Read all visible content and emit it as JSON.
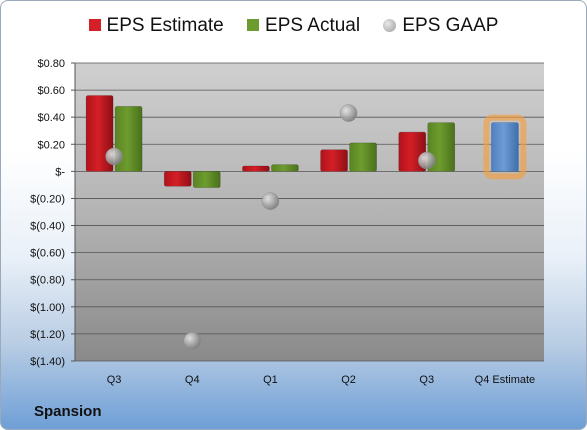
{
  "company": "Spansion",
  "colors": {
    "estimate": "#d41f26",
    "actual": "#6d9c2e",
    "gaap": "#9c9c9c",
    "next_estimate": "#6e9bd4",
    "glow": "#f5a040"
  },
  "chart_data": {
    "type": "bar",
    "categories": [
      "Q3",
      "Q4",
      "Q1",
      "Q2",
      "Q3",
      "Q4 Estimate"
    ],
    "series": [
      {
        "name": "EPS Estimate",
        "kind": "bar",
        "values": [
          0.56,
          -0.11,
          0.04,
          0.16,
          0.29,
          null
        ]
      },
      {
        "name": "EPS Actual",
        "kind": "bar",
        "values": [
          0.48,
          -0.12,
          0.05,
          0.21,
          0.36,
          null
        ]
      },
      {
        "name": "EPS GAAP",
        "kind": "scatter",
        "values": [
          0.11,
          -1.25,
          -0.22,
          0.43,
          0.08,
          null
        ]
      },
      {
        "name": "",
        "kind": "bar",
        "values": [
          null,
          null,
          null,
          null,
          null,
          0.36
        ]
      }
    ],
    "yticks": [
      "$0.80",
      "$0.60",
      "$0.40",
      "$0.20",
      "$-",
      "$(0.20)",
      "$(0.40)",
      "$(0.60)",
      "$(0.80)",
      "$(1.00)",
      "$(1.20)",
      "$(1.40)"
    ],
    "ylim": [
      -1.4,
      0.8
    ],
    "grid": true,
    "legend_position": "top"
  }
}
